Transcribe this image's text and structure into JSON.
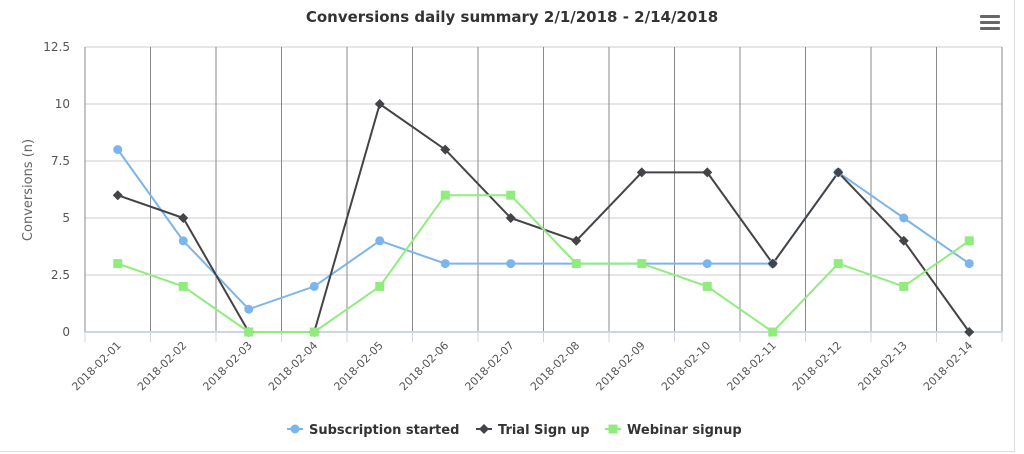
{
  "chart_data": {
    "type": "line",
    "title": "Conversions daily summary 2/1/2018 - 2/14/2018",
    "xlabel": "",
    "ylabel": "Conversions (n)",
    "ylim": [
      0,
      12.5
    ],
    "yticks": [
      "0",
      "2.5",
      "5",
      "7.5",
      "10",
      "12.5"
    ],
    "ytick_values": [
      0,
      2.5,
      5,
      7.5,
      10,
      12.5
    ],
    "grid": true,
    "legend_position": "bottom-center",
    "categories": [
      "2018-02-01",
      "2018-02-02",
      "2018-02-03",
      "2018-02-04",
      "2018-02-05",
      "2018-02-06",
      "2018-02-07",
      "2018-02-08",
      "2018-02-09",
      "2018-02-10",
      "2018-02-11",
      "2018-02-12",
      "2018-02-13",
      "2018-02-14"
    ],
    "series": [
      {
        "name": "Subscription started",
        "color": "#7cb5ec",
        "marker": "circle",
        "values": [
          8,
          4,
          1,
          2,
          4,
          3,
          3,
          3,
          3,
          3,
          3,
          7,
          5,
          3
        ]
      },
      {
        "name": "Trial Sign up",
        "color": "#434348",
        "marker": "diamond",
        "values": [
          6,
          5,
          0,
          0,
          10,
          8,
          5,
          4,
          7,
          7,
          3,
          7,
          4,
          0
        ]
      },
      {
        "name": "Webinar signup",
        "color": "#90ed7d",
        "marker": "square",
        "values": [
          3,
          2,
          0,
          0,
          2,
          6,
          6,
          3,
          3,
          2,
          0,
          3,
          2,
          4
        ]
      }
    ]
  },
  "menu_icon": "hamburger-menu-icon"
}
